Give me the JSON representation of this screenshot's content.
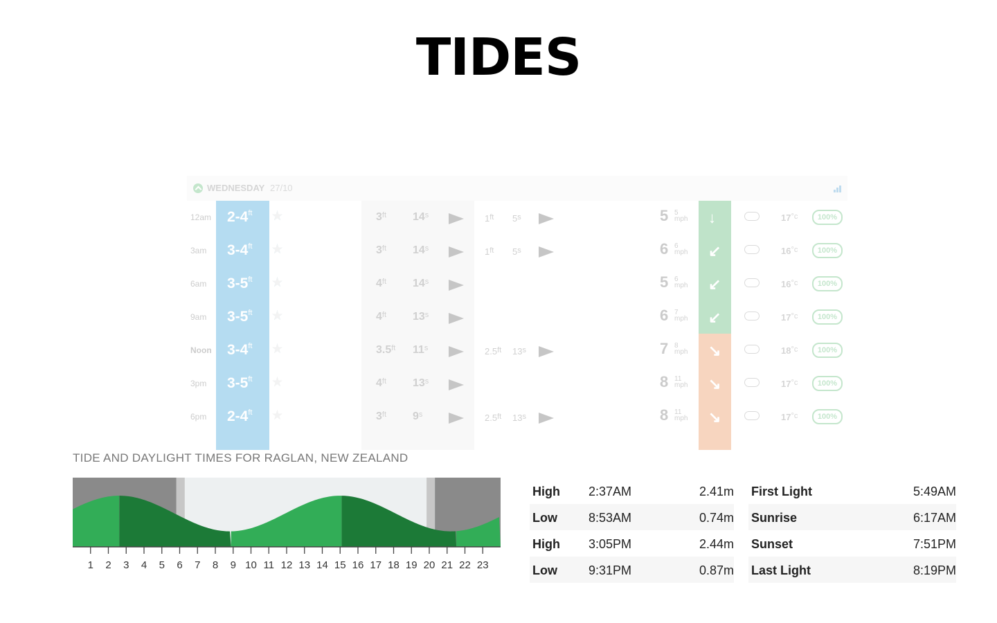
{
  "page": {
    "title": "TIDES"
  },
  "forecast": {
    "day": "WEDNESDAY",
    "date": "27/10",
    "rows": [
      {
        "time": "12am",
        "surf": "2-4",
        "surf_unit": "ft",
        "stars": 3,
        "swell_h": "3",
        "swell_p": "14",
        "sec_h": "1",
        "sec_p": "5",
        "wind": "5",
        "gust": "5",
        "wind_unit": "mph",
        "wind_arrow": "↓",
        "weather": "cloud",
        "temp": "17",
        "temp_unit": "°c",
        "pct": "100%"
      },
      {
        "time": "3am",
        "surf": "3-4",
        "surf_unit": "ft",
        "stars": 3,
        "swell_h": "3",
        "swell_p": "14",
        "sec_h": "1",
        "sec_p": "5",
        "wind": "6",
        "gust": "6",
        "wind_unit": "mph",
        "wind_arrow": "↙",
        "weather": "cloud",
        "temp": "16",
        "temp_unit": "°c",
        "pct": "100%"
      },
      {
        "time": "6am",
        "surf": "3-5",
        "surf_unit": "ft",
        "stars": 3,
        "swell_h": "4",
        "swell_p": "14",
        "sec_h": "",
        "sec_p": "",
        "wind": "5",
        "gust": "6",
        "wind_unit": "mph",
        "wind_arrow": "↙",
        "weather": "cloud",
        "temp": "16",
        "temp_unit": "°c",
        "pct": "100%"
      },
      {
        "time": "9am",
        "surf": "3-5",
        "surf_unit": "ft",
        "stars": 3,
        "swell_h": "4",
        "swell_p": "13",
        "sec_h": "",
        "sec_p": "",
        "wind": "6",
        "gust": "7",
        "wind_unit": "mph",
        "wind_arrow": "↙",
        "weather": "cloud",
        "temp": "17",
        "temp_unit": "°c",
        "pct": "100%"
      },
      {
        "time": "Noon",
        "surf": "3-4",
        "surf_unit": "ft",
        "stars": 2,
        "swell_h": "3.5",
        "swell_p": "11",
        "sec_h": "2.5",
        "sec_p": "13",
        "wind": "7",
        "gust": "8",
        "wind_unit": "mph",
        "wind_arrow": "↘",
        "weather": "sun-rain",
        "temp": "18",
        "temp_unit": "°c",
        "pct": "100%"
      },
      {
        "time": "3pm",
        "surf": "3-5",
        "surf_unit": "ft",
        "stars": 1,
        "swell_h": "4",
        "swell_p": "13",
        "sec_h": "",
        "sec_p": "",
        "wind": "8",
        "gust": "11",
        "wind_unit": "mph",
        "wind_arrow": "↘",
        "weather": "sun-rain",
        "temp": "17",
        "temp_unit": "°c",
        "pct": "100%"
      },
      {
        "time": "6pm",
        "surf": "2-4",
        "surf_unit": "ft",
        "stars": 0,
        "swell_h": "3",
        "swell_p": "9",
        "sec_h": "2.5",
        "sec_p": "13",
        "wind": "8",
        "gust": "11",
        "wind_unit": "mph",
        "wind_arrow": "↘",
        "weather": "sun-rain",
        "temp": "17",
        "temp_unit": "°c",
        "pct": "100%"
      }
    ]
  },
  "tide": {
    "caption": "TIDE AND DAYLIGHT TIMES FOR RAGLAN, NEW ZEALAND",
    "hours": [
      "1",
      "2",
      "3",
      "4",
      "5",
      "6",
      "7",
      "8",
      "9",
      "10",
      "11",
      "12",
      "13",
      "14",
      "15",
      "16",
      "17",
      "18",
      "19",
      "20",
      "21",
      "22",
      "23"
    ],
    "events": [
      {
        "type": "High",
        "time": "2:37AM",
        "height": "2.41m"
      },
      {
        "type": "Low",
        "time": "8:53AM",
        "height": "0.74m"
      },
      {
        "type": "High",
        "time": "3:05PM",
        "height": "2.44m"
      },
      {
        "type": "Low",
        "time": "9:31PM",
        "height": "0.87m"
      }
    ],
    "daylight": [
      {
        "label": "First Light",
        "time": "5:49AM"
      },
      {
        "label": "Sunrise",
        "time": "6:17AM"
      },
      {
        "label": "Sunset",
        "time": "7:51PM"
      },
      {
        "label": "Last Light",
        "time": "8:19PM"
      }
    ]
  },
  "colors": {
    "tide_light": "#32ad57",
    "tide_dark": "#1c7a37",
    "night": "#8a8a8a",
    "twilight": "#c7c7c7",
    "day": "#edf0f1"
  }
}
